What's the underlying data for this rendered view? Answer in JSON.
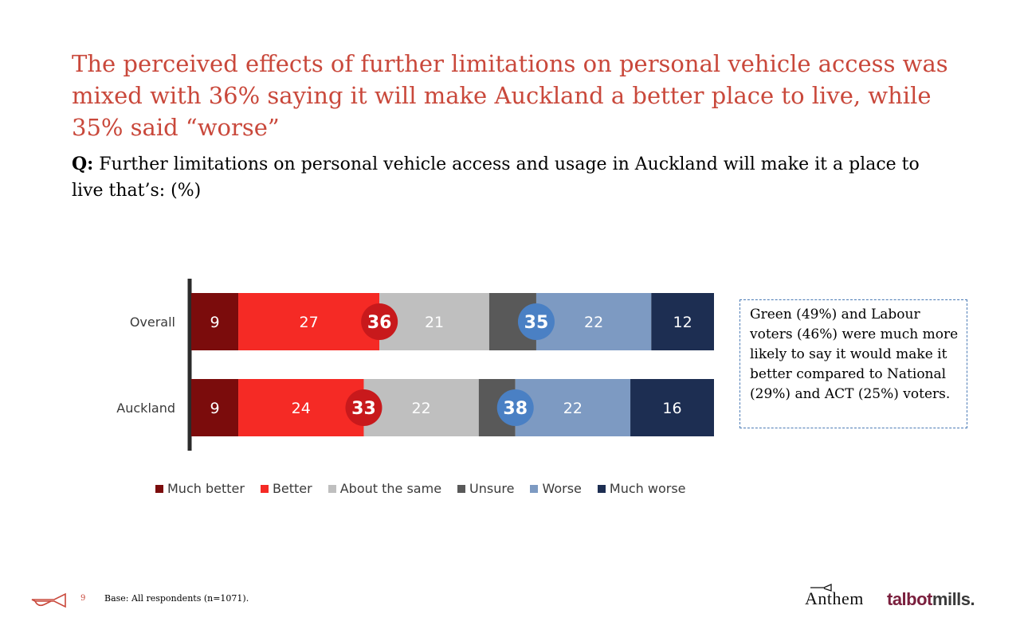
{
  "slide": {
    "title": "The perceived effects of further limitations on personal vehicle access was mixed with 36% saying it will make Auckland a better place to live, while 35% said “worse”",
    "question_prefix": "Q:",
    "question_text": " Further limitations on personal vehicle access and usage in Auckland will make it a place to live that’s: (%)",
    "note": "Green (49%) and Labour voters (46%) were much more likely to say it would make it better compared to National (29%) and ACT (25%) voters.",
    "page_number": "9",
    "base": "Base: All respondents (n=1071).",
    "logo_anthem": "Anthem",
    "logo_talbot_1": "talbot",
    "logo_talbot_2": "mills."
  },
  "chart_data": {
    "type": "bar",
    "orientation": "horizontal",
    "stacked": true,
    "unit": "%",
    "categories": [
      "Overall",
      "Auckland"
    ],
    "series": [
      {
        "name": "Much better",
        "values": [
          9,
          9
        ],
        "color": "#7b0c0c",
        "label_color": "#ffffff"
      },
      {
        "name": "Better",
        "values": [
          27,
          24
        ],
        "color": "#f52a25",
        "label_color": "#ffffff"
      },
      {
        "name": "About the same",
        "values": [
          21,
          22
        ],
        "color": "#bfbfbf",
        "label_color": "#ffffff"
      },
      {
        "name": "Unsure",
        "values": [
          9,
          7
        ],
        "color": "#595959",
        "label_color": "#ffffff"
      },
      {
        "name": "Worse",
        "values": [
          22,
          22
        ],
        "color": "#7d9ac2",
        "label_color": "#ffffff"
      },
      {
        "name": "Much worse",
        "values": [
          12,
          16
        ],
        "color": "#1d2e52",
        "label_color": "#ffffff"
      }
    ],
    "series_labels_shown": [
      "Much better",
      "Better",
      "About the same",
      "Worse",
      "Much worse"
    ],
    "nett": [
      {
        "name": "Better nett",
        "values": [
          36,
          33
        ],
        "color": "#c8191c"
      },
      {
        "name": "Worse nett",
        "values": [
          35,
          38
        ],
        "color": "#4a80c4"
      }
    ],
    "xlim": [
      0,
      100
    ],
    "legend": "bottom",
    "grid": false
  }
}
